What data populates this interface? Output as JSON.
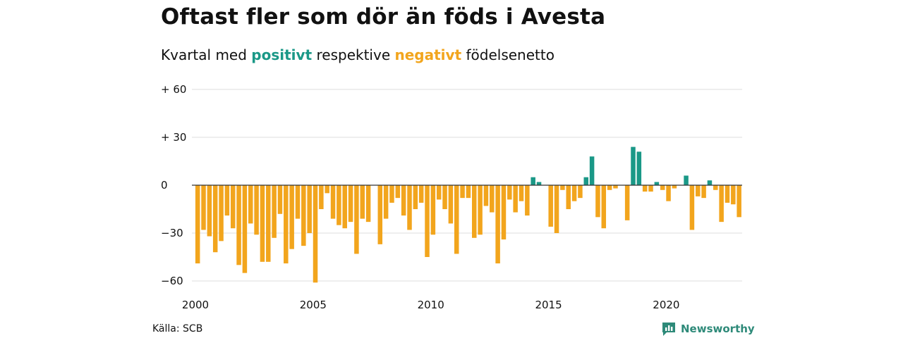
{
  "title": "Oftast fler som dör än föds i Avesta",
  "subtitle": {
    "prefix": "Kvartal med",
    "positive_word": "positivt",
    "middle": "respektive",
    "negative_word": "negativt",
    "suffix": "födelsenetto"
  },
  "source": "Källa: SCB",
  "brand": {
    "name": "Newsworthy",
    "icon": "newsworthy-logo-icon"
  },
  "colors": {
    "positive": "#1a9887",
    "negative": "#f2a51d",
    "grid": "#dddddd",
    "axis": "#333333"
  },
  "chart_data": {
    "type": "bar",
    "title": "Oftast fler som dör än föds i Avesta",
    "subtitle": "Kvartal med positivt respektive negativt födelsenetto",
    "xlabel": "",
    "ylabel": "",
    "ylim": [
      -60,
      60
    ],
    "y_ticks": [
      {
        "value": 60,
        "label": "+ 60"
      },
      {
        "value": 30,
        "label": "+ 30"
      },
      {
        "value": 0,
        "label": "0"
      },
      {
        "value": -30,
        "label": "−30"
      },
      {
        "value": -60,
        "label": "−60"
      }
    ],
    "x_ticks": [
      {
        "label": "2000",
        "index": 0
      },
      {
        "label": "2005",
        "index": 20
      },
      {
        "label": "2010",
        "index": 40
      },
      {
        "label": "2015",
        "index": 60
      },
      {
        "label": "2020",
        "index": 80
      }
    ],
    "start_year": 2000,
    "grid": true,
    "values": [
      -49,
      -28,
      -32,
      -42,
      -35,
      -19,
      -27,
      -50,
      -55,
      -24,
      -31,
      -48,
      -48,
      -33,
      -18,
      -49,
      -40,
      -21,
      -38,
      -30,
      -61,
      -15,
      -5,
      -21,
      -25,
      -27,
      -23,
      -43,
      -21,
      -23,
      0,
      -37,
      -21,
      -11,
      -8,
      -19,
      -28,
      -15,
      -11,
      -45,
      -31,
      -9,
      -15,
      -24,
      -43,
      -8,
      -8,
      -33,
      -31,
      -13,
      -17,
      -49,
      -34,
      -9,
      -17,
      -10,
      -19,
      5,
      2,
      0,
      -26,
      -30,
      -3,
      -15,
      -10,
      -8,
      5,
      18,
      -20,
      -27,
      -3,
      -2,
      0,
      -22,
      24,
      21,
      -4,
      -4,
      2,
      -3,
      -10,
      -2,
      0,
      6,
      -28,
      -7,
      -8,
      3,
      -3,
      -23,
      -11,
      -12,
      -20
    ]
  }
}
